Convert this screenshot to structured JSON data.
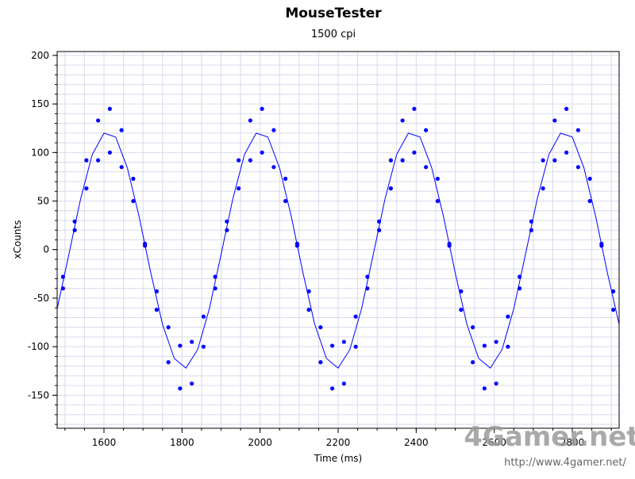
{
  "chart_data": {
    "type": "scatter",
    "title": "MouseTester",
    "subtitle": "1500 cpi",
    "x_label": "Time (ms)",
    "y_label": "xCounts",
    "xlim": [
      1480,
      2920
    ],
    "ylim": [
      -184,
      204
    ],
    "xticks": [
      1600,
      1800,
      2000,
      2200,
      2400,
      2600,
      2800
    ],
    "yticks": [
      -150,
      -100,
      -50,
      0,
      50,
      100,
      150,
      200
    ],
    "xminorticks": [
      1500,
      1550,
      1600,
      1650,
      1700,
      1750,
      1800,
      1850,
      1900,
      1950,
      2000,
      2050,
      2100,
      2150,
      2200,
      2250,
      2300,
      2350,
      2400,
      2450,
      2500,
      2550,
      2600,
      2650,
      2700,
      2750,
      2800,
      2850,
      2900
    ],
    "yminorticks": [
      -180,
      -170,
      -160,
      -150,
      -140,
      -130,
      -120,
      -110,
      -100,
      -90,
      -80,
      -70,
      -60,
      -50,
      -40,
      -30,
      -20,
      -10,
      0,
      10,
      20,
      30,
      40,
      50,
      60,
      70,
      80,
      90,
      100,
      110,
      120,
      130,
      140,
      150,
      160,
      170,
      180,
      190,
      200
    ],
    "grid": true,
    "series": [
      {
        "type": "line",
        "color": "#0000ff",
        "x": [
          1480,
          1510,
          1540,
          1570,
          1600,
          1630,
          1660,
          1690,
          1720,
          1750,
          1780,
          1810,
          1840,
          1870,
          1900,
          1930,
          1960,
          1990,
          2020,
          2050,
          2080,
          2110,
          2140,
          2170,
          2200,
          2230,
          2260,
          2290,
          2320,
          2350,
          2380,
          2410,
          2440,
          2470,
          2500,
          2530,
          2560,
          2590,
          2620,
          2650,
          2680,
          2710,
          2740,
          2770,
          2800,
          2830,
          2860,
          2890,
          2920
        ],
        "values": [
          -61,
          -5,
          52,
          98,
          120,
          116,
          84,
          34,
          -24,
          -77,
          -112,
          -122,
          -103,
          -61,
          -5,
          52,
          98,
          120,
          116,
          84,
          34,
          -24,
          -77,
          -112,
          -122,
          -103,
          -61,
          -5,
          52,
          98,
          120,
          116,
          84,
          34,
          -24,
          -77,
          -112,
          -122,
          -103,
          -61,
          -5,
          52,
          98,
          120,
          116,
          84,
          34,
          -24,
          -77
        ]
      },
      {
        "type": "scatter",
        "color": "#0000ff",
        "x": [
          1495,
          1525,
          1555,
          1585,
          1615,
          1645,
          1675,
          1705,
          1735,
          1765,
          1795,
          1825,
          1855,
          1885,
          1915,
          1945,
          1975,
          2005,
          2035,
          2065,
          2095,
          2125,
          2155,
          2185,
          2215,
          2245,
          2275,
          2305,
          2335,
          2365,
          2395,
          2425,
          2455,
          2485,
          2515,
          2545,
          2575,
          2605,
          2635,
          2665,
          2695,
          2725,
          2755,
          2785,
          2815,
          2845,
          2875,
          2905
        ],
        "values": [
          -40,
          29,
          92,
          133,
          145,
          123,
          73,
          6,
          -62,
          -116,
          -143,
          -138,
          -100,
          -40,
          29,
          92,
          133,
          145,
          123,
          73,
          6,
          -62,
          -116,
          -143,
          -138,
          -100,
          -40,
          29,
          92,
          133,
          145,
          123,
          73,
          6,
          -62,
          -116,
          -143,
          -138,
          -100,
          -40,
          29,
          92,
          133,
          145,
          123,
          73,
          6,
          -62
        ]
      },
      {
        "type": "scatter",
        "color": "#0000ff",
        "x": [
          1495,
          1525,
          1555,
          1585,
          1615,
          1645,
          1675,
          1705,
          1735,
          1765,
          1795,
          1825,
          1855,
          1885,
          1915,
          1945,
          1975,
          2005,
          2035,
          2065,
          2095,
          2125,
          2155,
          2185,
          2215,
          2245,
          2275,
          2305,
          2335,
          2365,
          2395,
          2425,
          2455,
          2485,
          2515,
          2545,
          2575,
          2605,
          2635,
          2665,
          2695,
          2725,
          2755,
          2785,
          2815,
          2845,
          2875,
          2905
        ],
        "values": [
          -28,
          20,
          63,
          92,
          100,
          85,
          50,
          4,
          -43,
          -80,
          -99,
          -95,
          -69,
          -28,
          20,
          63,
          92,
          100,
          85,
          50,
          4,
          -43,
          -80,
          -99,
          -95,
          -69,
          -28,
          20,
          63,
          92,
          100,
          85,
          50,
          4,
          -43,
          -80,
          -99,
          -95,
          -69,
          -28,
          20,
          63,
          92,
          100,
          85,
          50,
          4,
          -43
        ]
      }
    ],
    "watermark": "4Gamer.net",
    "watermark_url": "http://www.4gamer.net/"
  }
}
